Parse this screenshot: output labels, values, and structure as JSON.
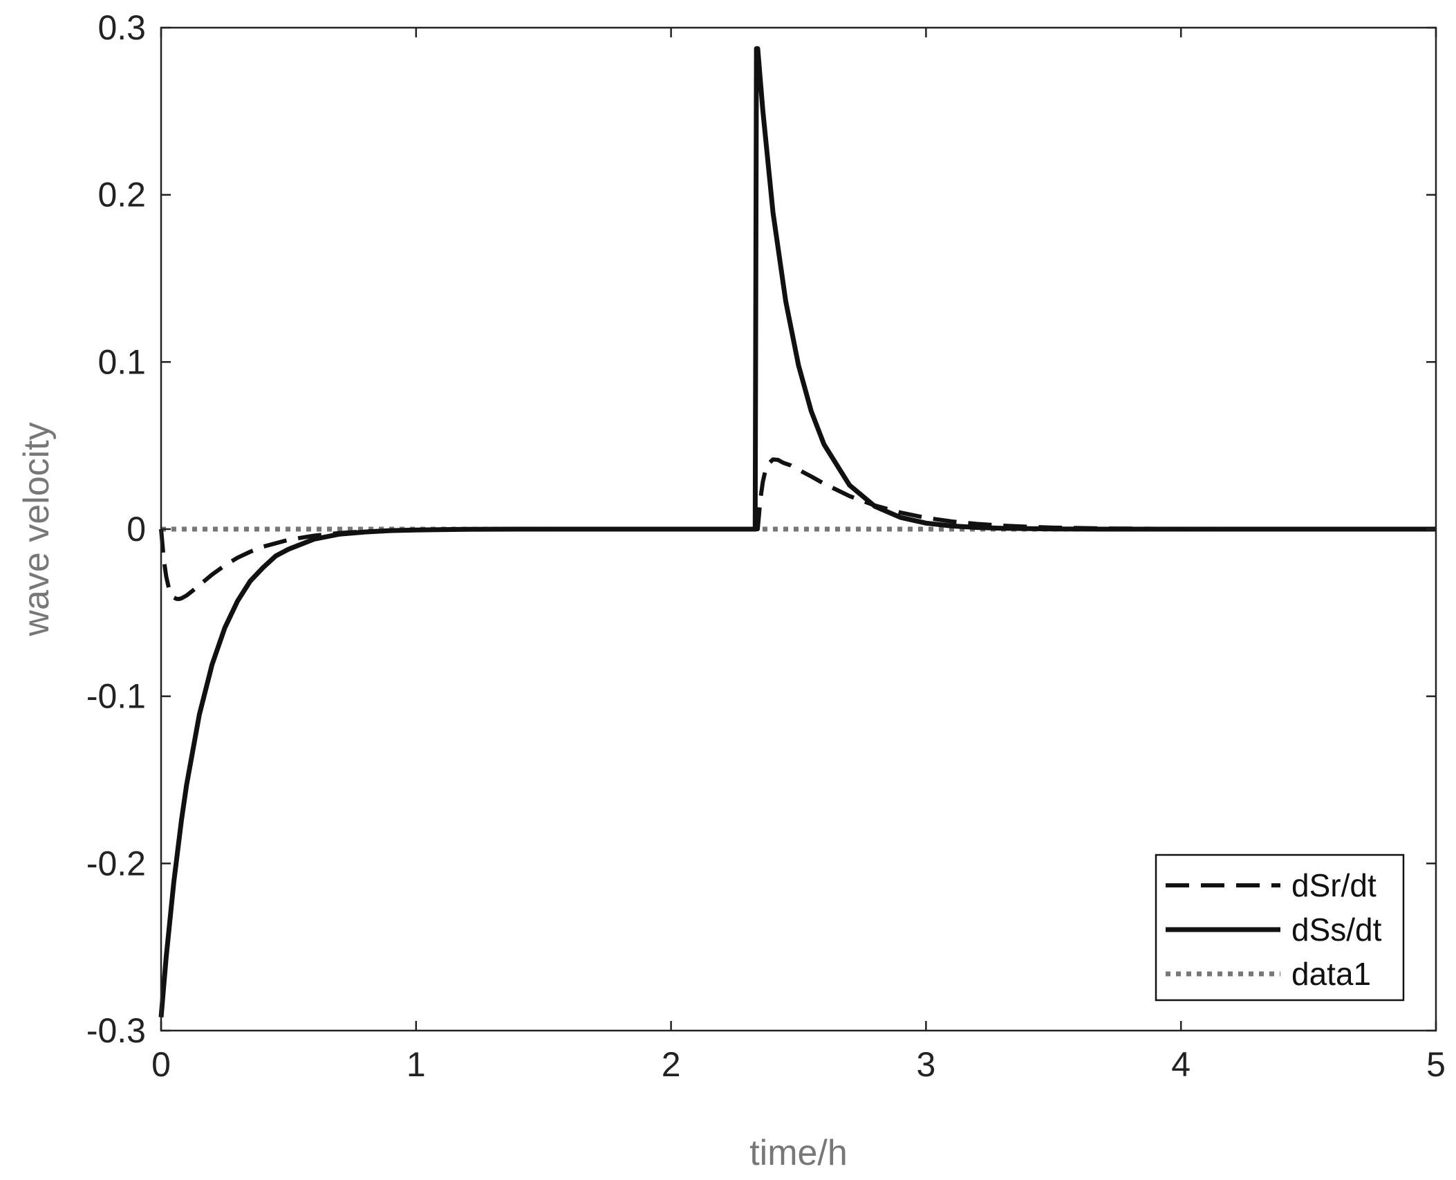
{
  "chart_data": {
    "type": "line",
    "title": "",
    "xlabel": "time/h",
    "ylabel": "wave velocity",
    "xlim": [
      0,
      5
    ],
    "ylim": [
      -0.3,
      0.3
    ],
    "xticks": [
      0,
      1,
      2,
      3,
      4,
      5
    ],
    "xtick_labels": [
      "0",
      "1",
      "2",
      "3",
      "4",
      "5"
    ],
    "yticks": [
      -0.3,
      -0.2,
      -0.1,
      0,
      0.1,
      0.2,
      0.3
    ],
    "ytick_labels": [
      "-0.3",
      "-0.2",
      "-0.1",
      "0",
      "0.1",
      "0.2",
      "0.3"
    ],
    "grid": false,
    "legend_position": "bottom-right",
    "series": [
      {
        "name": "dSr/dt",
        "style": "dashed",
        "color": "#111111",
        "x": [
          0,
          0.01,
          0.02,
          0.03,
          0.04,
          0.05,
          0.06,
          0.07,
          0.08,
          0.1,
          0.12,
          0.15,
          0.2,
          0.25,
          0.3,
          0.35,
          0.4,
          0.5,
          0.6,
          0.7,
          0.8,
          0.9,
          1.0,
          1.1,
          1.2,
          1.4,
          1.6,
          1.8,
          2.0,
          2.2,
          2.33,
          2.34,
          2.35,
          2.36,
          2.37,
          2.38,
          2.4,
          2.42,
          2.44,
          2.47,
          2.5,
          2.55,
          2.6,
          2.7,
          2.8,
          2.9,
          3.0,
          3.1,
          3.2,
          3.3,
          3.4,
          3.5,
          3.7,
          3.9,
          4.2,
          4.5,
          5.0
        ],
        "y": [
          0,
          -0.0174,
          -0.0283,
          -0.035,
          -0.0389,
          -0.0409,
          -0.0417,
          -0.0418,
          -0.0414,
          -0.0397,
          -0.0373,
          -0.0335,
          -0.0272,
          -0.0217,
          -0.0171,
          -0.0135,
          -0.0105,
          -0.0064,
          -0.0039,
          -0.0023,
          -0.0014,
          -0.0009,
          -0.0005,
          -0.0003,
          -0.0002,
          -0.0001,
          0,
          0,
          0,
          0,
          0,
          0.0,
          0.0174,
          0.0283,
          0.035,
          0.0389,
          0.0417,
          0.0414,
          0.0397,
          0.0381,
          0.0355,
          0.0315,
          0.0272,
          0.0198,
          0.0141,
          0.0099,
          0.0068,
          0.0046,
          0.0031,
          0.0021,
          0.0014,
          0.0009,
          0.0004,
          0.0002,
          0,
          0,
          0
        ]
      },
      {
        "name": "dSs/dt",
        "style": "solid",
        "color": "#111111",
        "x": [
          0,
          0.02,
          0.05,
          0.08,
          0.1,
          0.15,
          0.2,
          0.25,
          0.3,
          0.35,
          0.4,
          0.45,
          0.5,
          0.6,
          0.7,
          0.8,
          0.9,
          1.0,
          1.2,
          1.4,
          1.6,
          1.8,
          2.0,
          2.2,
          2.33,
          2.335,
          2.34,
          2.36,
          2.4,
          2.45,
          2.5,
          2.55,
          2.6,
          2.7,
          2.8,
          2.9,
          3.0,
          3.1,
          3.2,
          3.3,
          3.4,
          3.5,
          3.7,
          4.0,
          4.5,
          5.0
        ],
        "y": [
          -0.292,
          -0.256,
          -0.211,
          -0.174,
          -0.153,
          -0.111,
          -0.081,
          -0.059,
          -0.043,
          -0.031,
          -0.023,
          -0.016,
          -0.012,
          -0.006,
          -0.003,
          -0.0017,
          -0.0009,
          -0.0005,
          -0.0001,
          0,
          0,
          0,
          0,
          0,
          0,
          0.2875,
          0.2875,
          0.2505,
          0.1893,
          0.1362,
          0.098,
          0.0705,
          0.0507,
          0.0263,
          0.0136,
          0.007,
          0.0036,
          0.0019,
          0.001,
          0.0005,
          0.0003,
          0.0001,
          0,
          0,
          0,
          0
        ]
      },
      {
        "name": "data1",
        "style": "dotted",
        "color": "#777777",
        "x": [
          0,
          5
        ],
        "y": [
          0,
          0
        ]
      }
    ]
  }
}
